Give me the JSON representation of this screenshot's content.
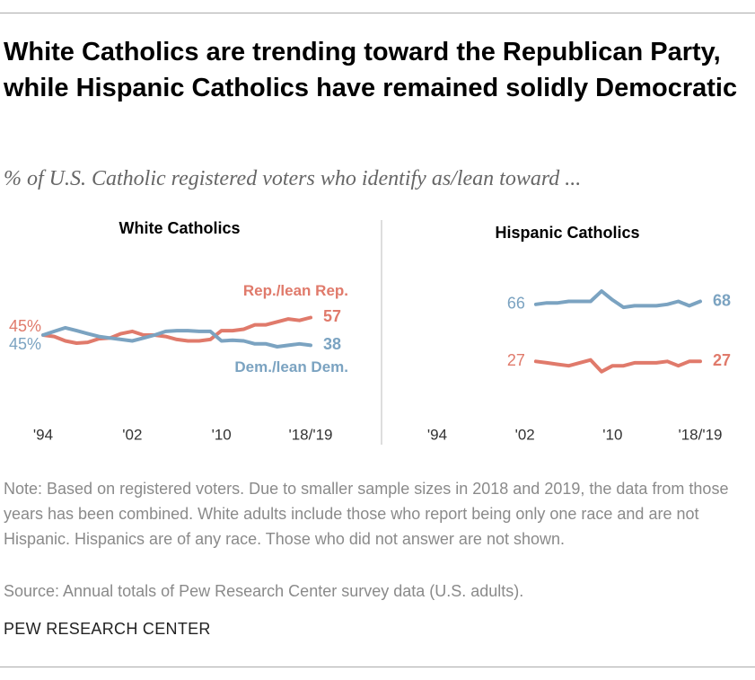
{
  "title": "White Catholics are trending toward the Republican Party, while Hispanic Catholics have remained solidly Democratic",
  "subtitle": "% of U.S. Catholic registered voters who identify as/lean toward ...",
  "note": "Note: Based on registered voters. Due to smaller sample sizes in 2018 and 2019, the data from those years has been combined. White adults include those who report being only one race and are not Hispanic. Hispanics are of any race. Those who did not answer are not shown.",
  "source": "Source: Annual totals of Pew Research Center survey data (U.S. adults).",
  "brand": "PEW RESEARCH CENTER",
  "chart_data": [
    {
      "type": "line",
      "title": "White Catholics",
      "x": [
        1994,
        1995,
        1996,
        1997,
        1998,
        1999,
        2000,
        2001,
        2002,
        2003,
        2004,
        2005,
        2006,
        2007,
        2008,
        2009,
        2010,
        2011,
        2012,
        2013,
        2014,
        2015,
        2016,
        2017,
        2018
      ],
      "xlim": [
        1994,
        2018
      ],
      "xticks": [
        {
          "value": 1994,
          "label": "'94"
        },
        {
          "value": 2002,
          "label": "'02"
        },
        {
          "value": 2010,
          "label": "'10"
        },
        {
          "value": 2018,
          "label": "'18/'19"
        }
      ],
      "ylim": [
        10,
        80
      ],
      "series": [
        {
          "name": "Rep./lean Rep.",
          "color": "#e07a6b",
          "values": [
            45,
            44,
            41,
            39.5,
            40,
            42.5,
            43,
            46,
            47.5,
            45,
            45,
            44,
            42,
            41,
            41,
            42,
            48,
            48,
            49,
            52,
            52,
            54,
            56,
            55,
            57
          ],
          "value_labels": [
            "45%",
            null,
            null,
            null,
            null,
            null,
            null,
            null,
            null,
            null,
            null,
            null,
            null,
            null,
            null,
            null,
            null,
            null,
            null,
            null,
            null,
            null,
            null,
            null,
            "57"
          ]
        },
        {
          "name": "Dem./lean Dem.",
          "color": "#7ba3c1",
          "values": [
            45,
            47.5,
            50,
            48,
            46,
            44,
            43,
            42,
            41,
            43,
            45,
            47.5,
            48,
            48,
            47.5,
            47.5,
            41,
            41.5,
            41,
            39,
            39,
            37,
            38,
            39,
            38
          ],
          "value_labels": [
            "45%",
            null,
            null,
            null,
            null,
            null,
            null,
            null,
            null,
            null,
            null,
            null,
            null,
            null,
            null,
            null,
            null,
            null,
            null,
            null,
            null,
            null,
            null,
            null,
            "38"
          ]
        }
      ]
    },
    {
      "type": "line",
      "title": "Hispanic Catholics",
      "x": [
        2003,
        2004,
        2005,
        2006,
        2007,
        2008,
        2009,
        2010,
        2011,
        2012,
        2013,
        2014,
        2015,
        2016,
        2017,
        2018
      ],
      "xlim": [
        1994,
        2018
      ],
      "xticks": [
        {
          "value": 1994,
          "label": "'94"
        },
        {
          "value": 2002,
          "label": "'02"
        },
        {
          "value": 2010,
          "label": "'10"
        },
        {
          "value": 2018,
          "label": "'18/'19"
        }
      ],
      "ylim": [
        10,
        80
      ],
      "series": [
        {
          "color": "#7ba3c1",
          "values": [
            66,
            67,
            67,
            68,
            68,
            68,
            75,
            69,
            64,
            65,
            65,
            65,
            66,
            68,
            65,
            68
          ],
          "value_labels": [
            "66",
            null,
            null,
            null,
            null,
            null,
            null,
            null,
            null,
            null,
            null,
            null,
            null,
            null,
            null,
            "68"
          ]
        },
        {
          "color": "#e07a6b",
          "values": [
            27,
            26,
            25,
            24,
            26,
            28,
            20,
            24,
            24,
            26,
            26,
            26,
            27,
            24,
            27,
            27
          ],
          "value_labels": [
            "27",
            null,
            null,
            null,
            null,
            null,
            null,
            null,
            null,
            null,
            null,
            null,
            null,
            null,
            null,
            "27"
          ]
        }
      ]
    }
  ]
}
